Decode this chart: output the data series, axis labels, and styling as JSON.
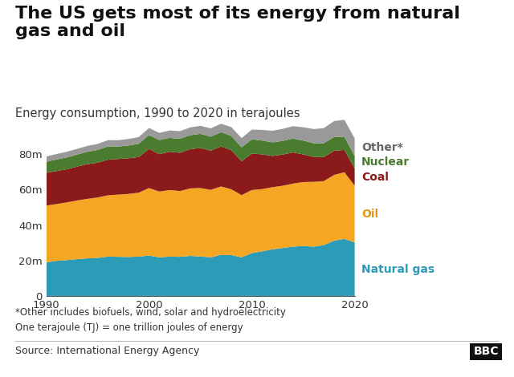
{
  "title": "The US gets most of its energy from natural\ngas and oil",
  "subtitle": "Energy consumption, 1990 to 2020 in terajoules",
  "footnote1": "*Other includes biofuels, wind, solar and hydroelectricity",
  "footnote2": "One terajoule (TJ) = one trillion joules of energy",
  "source": "Source: International Energy Agency",
  "years": [
    1990,
    1991,
    1992,
    1993,
    1994,
    1995,
    1996,
    1997,
    1998,
    1999,
    2000,
    2001,
    2002,
    2003,
    2004,
    2005,
    2006,
    2007,
    2008,
    2009,
    2010,
    2011,
    2012,
    2013,
    2014,
    2015,
    2016,
    2017,
    2018,
    2019,
    2020
  ],
  "natural_gas": [
    19000000,
    19800000,
    20200000,
    20800000,
    21200000,
    21500000,
    22200000,
    22100000,
    22000000,
    22200000,
    22800000,
    21800000,
    22200000,
    22100000,
    22600000,
    22300000,
    21800000,
    23200000,
    23100000,
    21800000,
    24200000,
    25200000,
    26300000,
    27100000,
    27800000,
    28200000,
    27800000,
    28700000,
    31200000,
    32200000,
    30200000
  ],
  "oil": [
    32000000,
    32100000,
    32600000,
    33100000,
    33600000,
    34100000,
    34600000,
    35100000,
    35600000,
    36100000,
    38100000,
    37100000,
    37600000,
    37100000,
    38100000,
    38600000,
    38100000,
    38600000,
    37100000,
    35100000,
    35600000,
    35100000,
    35100000,
    35100000,
    35600000,
    36100000,
    36600000,
    36100000,
    37100000,
    37600000,
    32100000
  ],
  "coal": [
    18500000,
    18600000,
    18700000,
    19100000,
    19600000,
    19600000,
    20100000,
    20100000,
    20100000,
    20100000,
    22100000,
    21100000,
    21600000,
    21600000,
    22100000,
    22600000,
    22100000,
    22600000,
    22100000,
    19100000,
    20600000,
    19600000,
    17600000,
    17600000,
    17600000,
    15600000,
    14100000,
    13600000,
    13600000,
    12600000,
    9600000
  ],
  "nuclear": [
    6200000,
    6500000,
    6700000,
    6800000,
    7000000,
    7200000,
    7500000,
    7000000,
    7200000,
    7500000,
    7800000,
    8000000,
    7800000,
    7900000,
    7900000,
    8000000,
    7900000,
    8000000,
    8000000,
    7900000,
    8000000,
    7800000,
    7700000,
    7700000,
    7800000,
    7800000,
    7700000,
    7800000,
    7800000,
    7500000,
    7000000
  ],
  "other": [
    3000000,
    3100000,
    3200000,
    3200000,
    3300000,
    3400000,
    3500000,
    3600000,
    3700000,
    3800000,
    4000000,
    4000000,
    4200000,
    4300000,
    4400000,
    4500000,
    4700000,
    4800000,
    5000000,
    5200000,
    5500000,
    6000000,
    6500000,
    6800000,
    7000000,
    7500000,
    8000000,
    8500000,
    9000000,
    9500000,
    10000000
  ],
  "colors": {
    "natural_gas": "#2B9BB8",
    "oil": "#F5A623",
    "coal": "#8B1A1A",
    "nuclear": "#4A7C2F",
    "other": "#999999"
  },
  "label_colors": {
    "natural_gas": "#2B9BB8",
    "oil": "#E8960A",
    "coal": "#8B1A1A",
    "nuclear": "#4A7C2F",
    "other": "#666666"
  },
  "ylim": [
    0,
    100000000
  ],
  "yticks": [
    0,
    20000000,
    40000000,
    60000000,
    80000000
  ],
  "ytick_labels": [
    "0",
    "20m",
    "40m",
    "60m",
    "80m"
  ],
  "xticks": [
    1990,
    2000,
    2010,
    2020
  ],
  "background_color": "#FFFFFF",
  "title_fontsize": 16,
  "subtitle_fontsize": 10.5,
  "label_fontsize": 10,
  "footnote_fontsize": 8.5,
  "source_fontsize": 9
}
